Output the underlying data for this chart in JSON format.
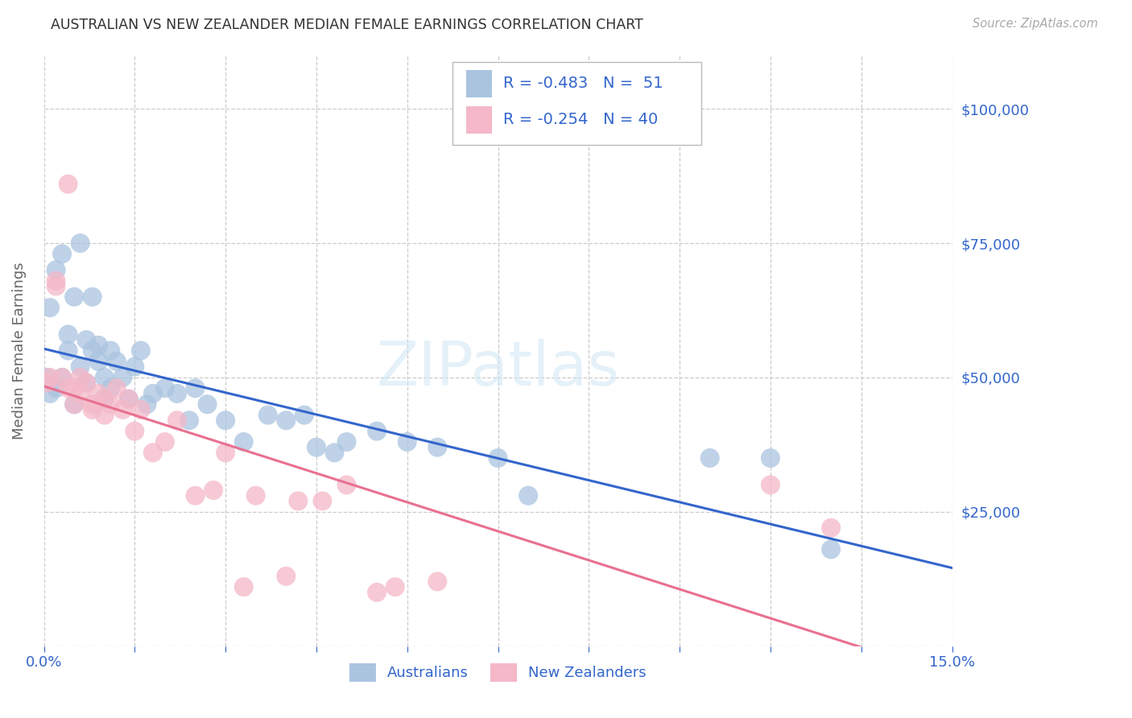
{
  "title": "AUSTRALIAN VS NEW ZEALANDER MEDIAN FEMALE EARNINGS CORRELATION CHART",
  "source": "Source: ZipAtlas.com",
  "ylabel": "Median Female Earnings",
  "watermark": "ZIPatlas",
  "aus_R": -0.483,
  "aus_N": 51,
  "nz_R": -0.254,
  "nz_N": 40,
  "xmin": 0.0,
  "xmax": 0.15,
  "ymin": 0,
  "ymax": 110000,
  "yticks": [
    0,
    25000,
    50000,
    75000,
    100000
  ],
  "aus_color": "#aac4e0",
  "nz_color": "#f4b8c8",
  "aus_line_color": "#3366cc",
  "nz_line_color": "#e87090",
  "grid_color": "#cccccc",
  "background_color": "#ffffff",
  "title_color": "#333333",
  "source_color": "#aaaaaa",
  "axis_label_color": "#666666",
  "tick_color": "#3366cc",
  "australians_x": [
    0.0005,
    0.001,
    0.001,
    0.002,
    0.002,
    0.003,
    0.003,
    0.004,
    0.004,
    0.005,
    0.005,
    0.006,
    0.006,
    0.007,
    0.007,
    0.008,
    0.008,
    0.009,
    0.009,
    0.01,
    0.01,
    0.011,
    0.011,
    0.012,
    0.013,
    0.014,
    0.015,
    0.016,
    0.017,
    0.018,
    0.02,
    0.022,
    0.024,
    0.025,
    0.027,
    0.03,
    0.033,
    0.037,
    0.04,
    0.043,
    0.045,
    0.048,
    0.05,
    0.055,
    0.06,
    0.065,
    0.075,
    0.08,
    0.11,
    0.12,
    0.13
  ],
  "australians_y": [
    50000,
    47000,
    63000,
    48000,
    70000,
    73000,
    50000,
    55000,
    58000,
    65000,
    45000,
    75000,
    52000,
    57000,
    49000,
    65000,
    55000,
    56000,
    53000,
    50000,
    46000,
    55000,
    48000,
    53000,
    50000,
    46000,
    52000,
    55000,
    45000,
    47000,
    48000,
    47000,
    42000,
    48000,
    45000,
    42000,
    38000,
    43000,
    42000,
    43000,
    37000,
    36000,
    38000,
    40000,
    38000,
    37000,
    35000,
    28000,
    35000,
    35000,
    18000
  ],
  "nz_x": [
    0.0005,
    0.001,
    0.002,
    0.002,
    0.003,
    0.004,
    0.004,
    0.005,
    0.005,
    0.006,
    0.006,
    0.007,
    0.008,
    0.008,
    0.009,
    0.01,
    0.01,
    0.011,
    0.012,
    0.013,
    0.014,
    0.015,
    0.016,
    0.018,
    0.02,
    0.022,
    0.025,
    0.028,
    0.03,
    0.033,
    0.035,
    0.04,
    0.042,
    0.046,
    0.05,
    0.055,
    0.058,
    0.065,
    0.12,
    0.13
  ],
  "nz_y": [
    49000,
    50000,
    68000,
    67000,
    50000,
    48000,
    86000,
    48000,
    45000,
    50000,
    47000,
    49000,
    45000,
    44000,
    47000,
    46000,
    43000,
    45000,
    48000,
    44000,
    46000,
    40000,
    44000,
    36000,
    38000,
    42000,
    28000,
    29000,
    36000,
    11000,
    28000,
    13000,
    27000,
    27000,
    30000,
    10000,
    11000,
    12000,
    30000,
    22000
  ]
}
